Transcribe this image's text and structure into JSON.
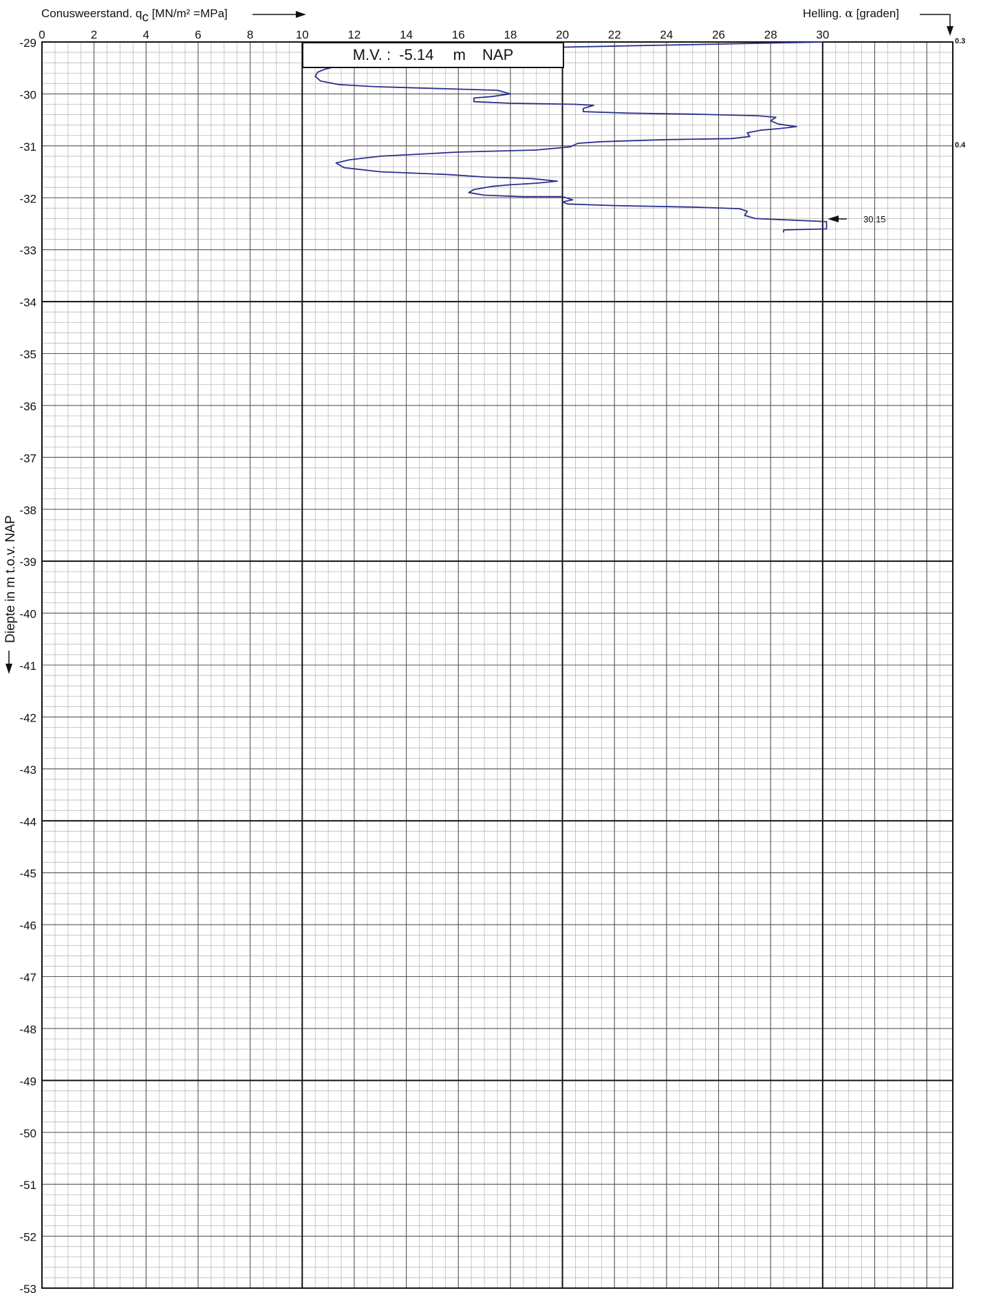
{
  "header": {
    "x_title_prefix": "Conusweerstand. q",
    "x_title_sub": "c",
    "x_title_unit": " [MN/m² =MPa]",
    "right_title_prefix": "Helling. ",
    "right_title_symbol": "α",
    "right_title_unit": " [graden]"
  },
  "ground_level": {
    "label": "M.V. :",
    "value": "-5.14",
    "unit": "m",
    "ref": "NAP"
  },
  "annotation": {
    "label": "30.15"
  },
  "chart_data": {
    "type": "line",
    "title": "",
    "xlabel": "Conusweerstand. qc [MN/m² =MPa]",
    "ylabel": "Diepte in m t.o.v. NAP",
    "xlim": [
      0,
      35
    ],
    "ylim": [
      -53,
      -29
    ],
    "x_ticks": [
      "0",
      "2",
      "4",
      "6",
      "8",
      "10",
      "12",
      "14",
      "16",
      "18",
      "20",
      "22",
      "24",
      "26",
      "28",
      "30"
    ],
    "y_ticks": [
      "-29",
      "-30",
      "-31",
      "-32",
      "-33",
      "-34",
      "-35",
      "-36",
      "-37",
      "-38",
      "-39",
      "-40",
      "-41",
      "-42",
      "-43",
      "-44",
      "-45",
      "-46",
      "-47",
      "-48",
      "-49",
      "-50",
      "-51",
      "-52",
      "-53"
    ],
    "grid": true,
    "right_axis": {
      "label": "Helling. α [graden]",
      "ticks": [
        {
          "depth": -29,
          "label": "0.3"
        },
        {
          "depth": -31,
          "label": "0.4"
        }
      ]
    },
    "series": [
      {
        "name": "",
        "color": "#2a2f8c",
        "x": [
          30.0,
          28.0,
          24.0,
          20.0,
          19.0,
          16.0,
          13.0,
          11.5,
          10.9,
          10.6,
          10.5,
          10.7,
          11.4,
          12.8,
          15.5,
          17.5,
          18.0,
          17.3,
          16.6,
          16.6,
          18.0,
          20.5,
          21.2,
          20.8,
          20.8,
          22.5,
          25.0,
          27.5,
          28.2,
          28.0,
          28.3,
          29.0,
          28.3,
          27.6,
          27.1,
          27.2,
          26.5,
          24.0,
          21.5,
          20.6,
          20.3,
          19.0,
          16.0,
          13.0,
          11.8,
          11.3,
          11.6,
          13.0,
          15.5,
          17.0,
          18.8,
          19.8,
          19.0,
          18.0,
          17.3,
          16.6,
          16.4,
          17.0,
          18.5,
          20.0,
          20.4,
          20.0,
          20.2,
          22.0,
          25.0,
          26.8,
          27.1,
          27.0,
          27.4,
          28.8,
          30.15,
          30.15,
          28.5,
          28.5
        ],
        "y": [
          -29.0,
          -29.02,
          -29.06,
          -29.1,
          -29.18,
          -29.28,
          -29.38,
          -29.45,
          -29.52,
          -29.58,
          -29.66,
          -29.75,
          -29.82,
          -29.86,
          -29.9,
          -29.93,
          -30.0,
          -30.05,
          -30.08,
          -30.15,
          -30.18,
          -30.2,
          -30.22,
          -30.28,
          -30.34,
          -30.37,
          -30.39,
          -30.42,
          -30.45,
          -30.52,
          -30.58,
          -30.63,
          -30.67,
          -30.7,
          -30.75,
          -30.82,
          -30.86,
          -30.88,
          -30.92,
          -30.95,
          -31.02,
          -31.08,
          -31.12,
          -31.2,
          -31.27,
          -31.33,
          -31.42,
          -31.5,
          -31.55,
          -31.6,
          -31.63,
          -31.68,
          -31.72,
          -31.75,
          -31.78,
          -31.84,
          -31.9,
          -31.95,
          -31.98,
          -31.98,
          -32.04,
          -32.08,
          -32.12,
          -32.15,
          -32.18,
          -32.21,
          -32.26,
          -32.34,
          -32.4,
          -32.43,
          -32.46,
          -32.6,
          -32.62,
          -32.67
        ]
      }
    ]
  }
}
